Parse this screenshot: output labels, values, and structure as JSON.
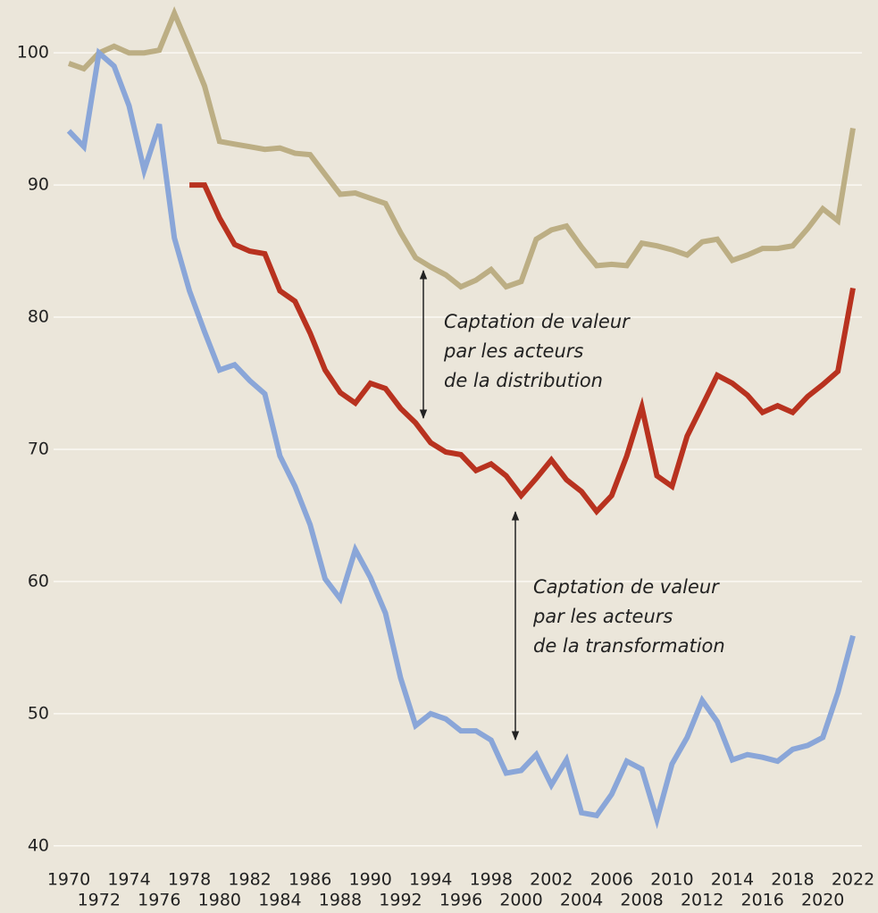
{
  "chart_data": {
    "type": "line",
    "x": [
      1970,
      1971,
      1972,
      1973,
      1974,
      1975,
      1976,
      1977,
      1978,
      1979,
      1980,
      1981,
      1982,
      1983,
      1984,
      1985,
      1986,
      1987,
      1988,
      1989,
      1990,
      1991,
      1992,
      1993,
      1994,
      1995,
      1996,
      1997,
      1998,
      1999,
      2000,
      2001,
      2002,
      2003,
      2004,
      2005,
      2006,
      2007,
      2008,
      2009,
      2010,
      2011,
      2012,
      2013,
      2014,
      2015,
      2016,
      2017,
      2018,
      2019,
      2020,
      2021,
      2022
    ],
    "series": [
      {
        "color": "#bcae84",
        "values": [
          99.2,
          98.8,
          100,
          100.5,
          100,
          100,
          100.2,
          103,
          100.3,
          97.5,
          93.3,
          93.1,
          92.9,
          92.7,
          92.8,
          92.4,
          92.3,
          90.8,
          89.3,
          89.4,
          89,
          88.6,
          86.4,
          84.5,
          83.8,
          83.2,
          82.3,
          82.8,
          83.6,
          82.3,
          82.7,
          85.9,
          86.6,
          86.9,
          85.3,
          83.9,
          84,
          83.9,
          85.6,
          85.4,
          85.1,
          84.7,
          85.7,
          85.9,
          84.3,
          84.7,
          85.2,
          85.2,
          85.4,
          86.7,
          88.2,
          87.3,
          94.3
        ]
      },
      {
        "color": "#b8321f",
        "values": [
          null,
          null,
          null,
          null,
          null,
          null,
          null,
          null,
          90,
          90,
          87.5,
          85.5,
          85,
          84.8,
          82,
          81.2,
          78.8,
          76,
          74.3,
          73.5,
          75,
          74.6,
          73.1,
          72,
          70.5,
          69.8,
          69.6,
          68.4,
          68.9,
          68,
          66.5,
          67.8,
          69.2,
          67.7,
          66.8,
          65.3,
          66.5,
          69.5,
          73.2,
          68,
          67.2,
          71,
          73.3,
          75.6,
          75,
          74.1,
          72.8,
          73.3,
          72.8,
          74,
          74.9,
          75.9,
          82.2
        ]
      },
      {
        "color": "#8aa6d8",
        "values": [
          94.1,
          92.9,
          100,
          99,
          96,
          91.1,
          94.6,
          86,
          82,
          78.9,
          76,
          76.4,
          75.2,
          74.2,
          69.5,
          67.2,
          64.3,
          60.2,
          58.7,
          62.4,
          60.3,
          57.6,
          52.7,
          49.1,
          50,
          49.6,
          48.7,
          48.7,
          48,
          45.5,
          45.7,
          46.9,
          44.6,
          46.5,
          42.5,
          42.3,
          43.9,
          46.4,
          45.8,
          42,
          46.2,
          48.2,
          51,
          49.4,
          46.5,
          46.9,
          46.7,
          46.4,
          47.3,
          47.6,
          48.2,
          51.6,
          55.9
        ]
      }
    ],
    "xlim": [
      1970,
      2022
    ],
    "xticks": [
      1970,
      1972,
      1974,
      1976,
      1978,
      1980,
      1982,
      1984,
      1986,
      1988,
      1990,
      1992,
      1994,
      1996,
      1998,
      2000,
      2002,
      2004,
      2006,
      2008,
      2010,
      2012,
      2014,
      2016,
      2018,
      2020,
      2022
    ],
    "ylim": [
      38.5,
      104
    ],
    "yticks": [
      40,
      50,
      60,
      70,
      80,
      90,
      100
    ],
    "grid": true,
    "annotations": [
      {
        "text": [
          "Captation de valeur",
          "par les acteurs",
          "de la distribution"
        ]
      },
      {
        "text": [
          "Captation de valeur",
          "par les acteurs",
          "de la transformation"
        ]
      }
    ]
  }
}
